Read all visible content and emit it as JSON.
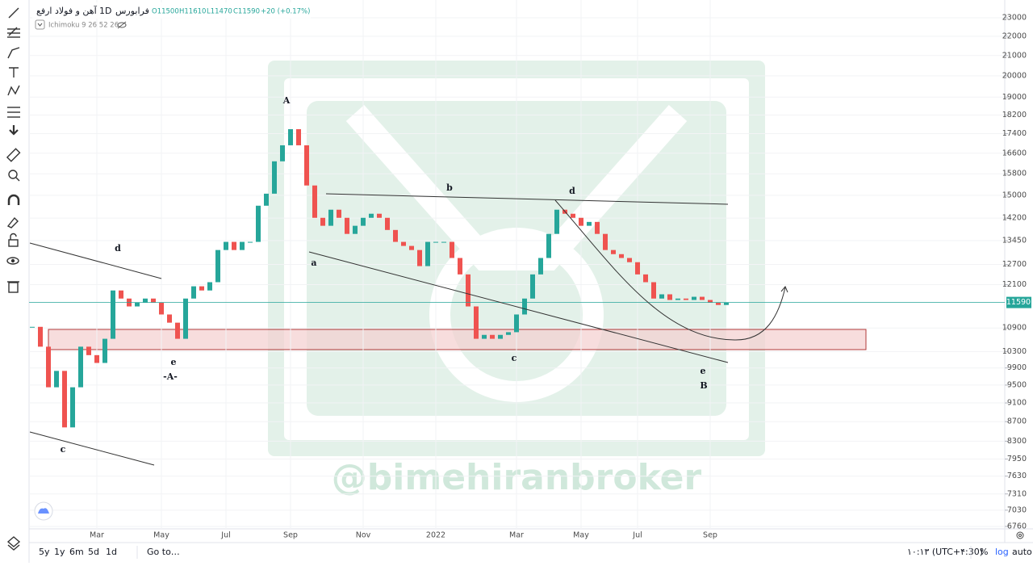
{
  "chart_data": {
    "type": "candlestick",
    "symbol": "آهن و فولاد ارفع",
    "interval": "1D",
    "exchange": "فرابورس",
    "ohlc": [
      "O11500",
      "H11610",
      "L11470",
      "C11590",
      "+20 (+0.17%)"
    ],
    "indicator": "Ichimoku 9 26 52 26",
    "watermark": "@bimehiranbroker",
    "annotations": [
      "A",
      "b",
      "d",
      "d",
      "a",
      "c",
      "e",
      "-A-",
      "c",
      "e",
      "B"
    ],
    "categories": [
      null,
      null,
      null,
      null,
      null,
      null,
      null,
      null,
      "Mar",
      null,
      null,
      null,
      null,
      null,
      null,
      null,
      "May",
      null,
      null,
      null,
      null,
      null,
      null,
      null,
      "Jul",
      null,
      null,
      null,
      null,
      null,
      null,
      null,
      "Sep",
      null,
      null,
      null,
      null,
      null,
      null,
      null,
      null,
      "Nov",
      null,
      null,
      null,
      null,
      null,
      null,
      null,
      null,
      "2022",
      null,
      null,
      null,
      null,
      null,
      null,
      null,
      null,
      null,
      "Mar",
      null,
      null,
      null,
      null,
      null,
      null,
      null,
      "May",
      null,
      null,
      null,
      null,
      null,
      null,
      "Jul",
      null,
      null,
      null,
      null,
      null,
      null,
      null,
      null,
      "Sep",
      null,
      null
    ],
    "values": [
      10930,
      10420,
      9450,
      9830,
      8580,
      9450,
      10420,
      10210,
      10020,
      10620,
      11930,
      11700,
      11480,
      11590,
      11700,
      11590,
      11260,
      11040,
      10620,
      11700,
      12050,
      11930,
      12170,
      13150,
      13410,
      13150,
      13410,
      13410,
      14630,
      15060,
      16280,
      16920,
      17590,
      16920,
      15360,
      14210,
      13940,
      14490,
      14210,
      13670,
      13940,
      14210,
      14350,
      14210,
      13800,
      13410,
      13280,
      13150,
      12650,
      13410,
      13410,
      13410,
      12900,
      12400,
      11480,
      10620,
      10720,
      10620,
      10720,
      10790,
      11260,
      11700,
      12400,
      12900,
      13670,
      14490,
      14350,
      14210,
      13940,
      14070,
      13670,
      13150,
      13020,
      12900,
      12770,
      12400,
      12170,
      11700,
      11820,
      11660,
      11700,
      11660,
      11750,
      11660,
      11590,
      11520,
      11590
    ],
    "colors": {
      "up": "#26a69a",
      "down": "#ef5350",
      "last": "#26a69a"
    },
    "log_scale": true,
    "grid": true,
    "ylim": [
      6760,
      23000
    ],
    "yticks": [
      23000,
      22000,
      21000,
      20000,
      19000,
      18200,
      17400,
      16600,
      15800,
      15000,
      14200,
      13450,
      12700,
      12100,
      10900,
      10300,
      9900,
      9500,
      9100,
      8700,
      8300,
      7950,
      7630,
      7310,
      7030,
      6760
    ]
  },
  "toolbar": {
    "ranges": [
      "5y",
      "1y",
      "6m",
      "5d",
      "1d"
    ],
    "goto": "Go to…",
    "clock": "۱۰:۱۳ (UTC+۴:30)",
    "percent": "%",
    "log": "log",
    "auto": "auto"
  }
}
